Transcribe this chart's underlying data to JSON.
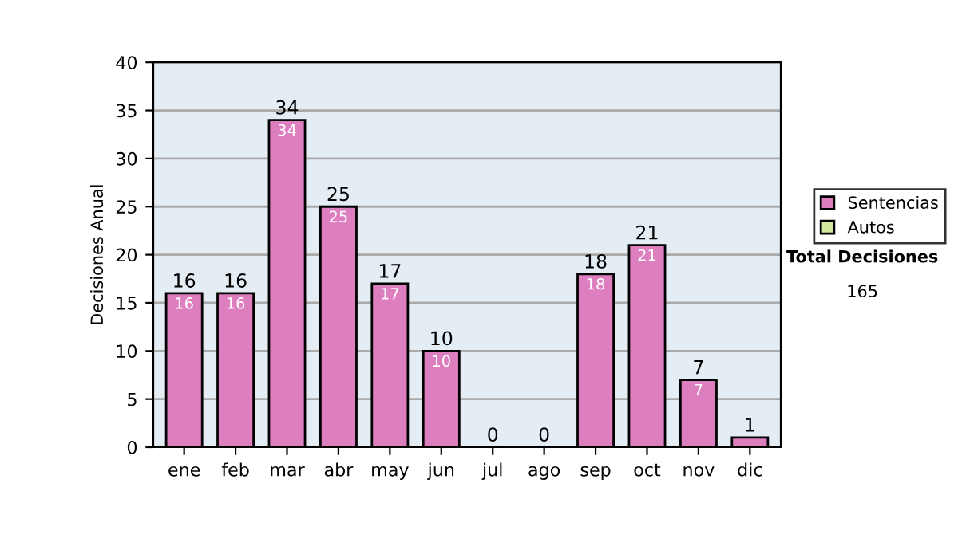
{
  "chart_data": {
    "type": "bar",
    "stacked": true,
    "ylabel": "Decisiones Anual",
    "categories": [
      "ene",
      "feb",
      "mar",
      "abr",
      "may",
      "jun",
      "jul",
      "ago",
      "sep",
      "oct",
      "nov",
      "dic"
    ],
    "series": [
      {
        "name": "Sentencias",
        "color": "#dd7fbf",
        "values": [
          16,
          16,
          34,
          25,
          17,
          10,
          0,
          0,
          18,
          21,
          7,
          1
        ],
        "value_labels": [
          "16",
          "16",
          "34",
          "25",
          "17",
          "10",
          null,
          null,
          "18",
          "21",
          "7",
          null
        ]
      },
      {
        "name": "Autos",
        "color": "#d4e8a0",
        "values": [
          0,
          0,
          0,
          0,
          0,
          0,
          0,
          0,
          0,
          0,
          0,
          0
        ]
      }
    ],
    "totals": [
      "16",
      "16",
      "34",
      "25",
      "17",
      "10",
      "0",
      "0",
      "18",
      "21",
      "7",
      "1"
    ],
    "ylim": [
      0,
      40
    ],
    "yticks": [
      0,
      5,
      10,
      15,
      20,
      25,
      30,
      35,
      40
    ],
    "grid": "y",
    "legend": "right",
    "annotations": [
      "Total Decisiones",
      "165"
    ]
  }
}
